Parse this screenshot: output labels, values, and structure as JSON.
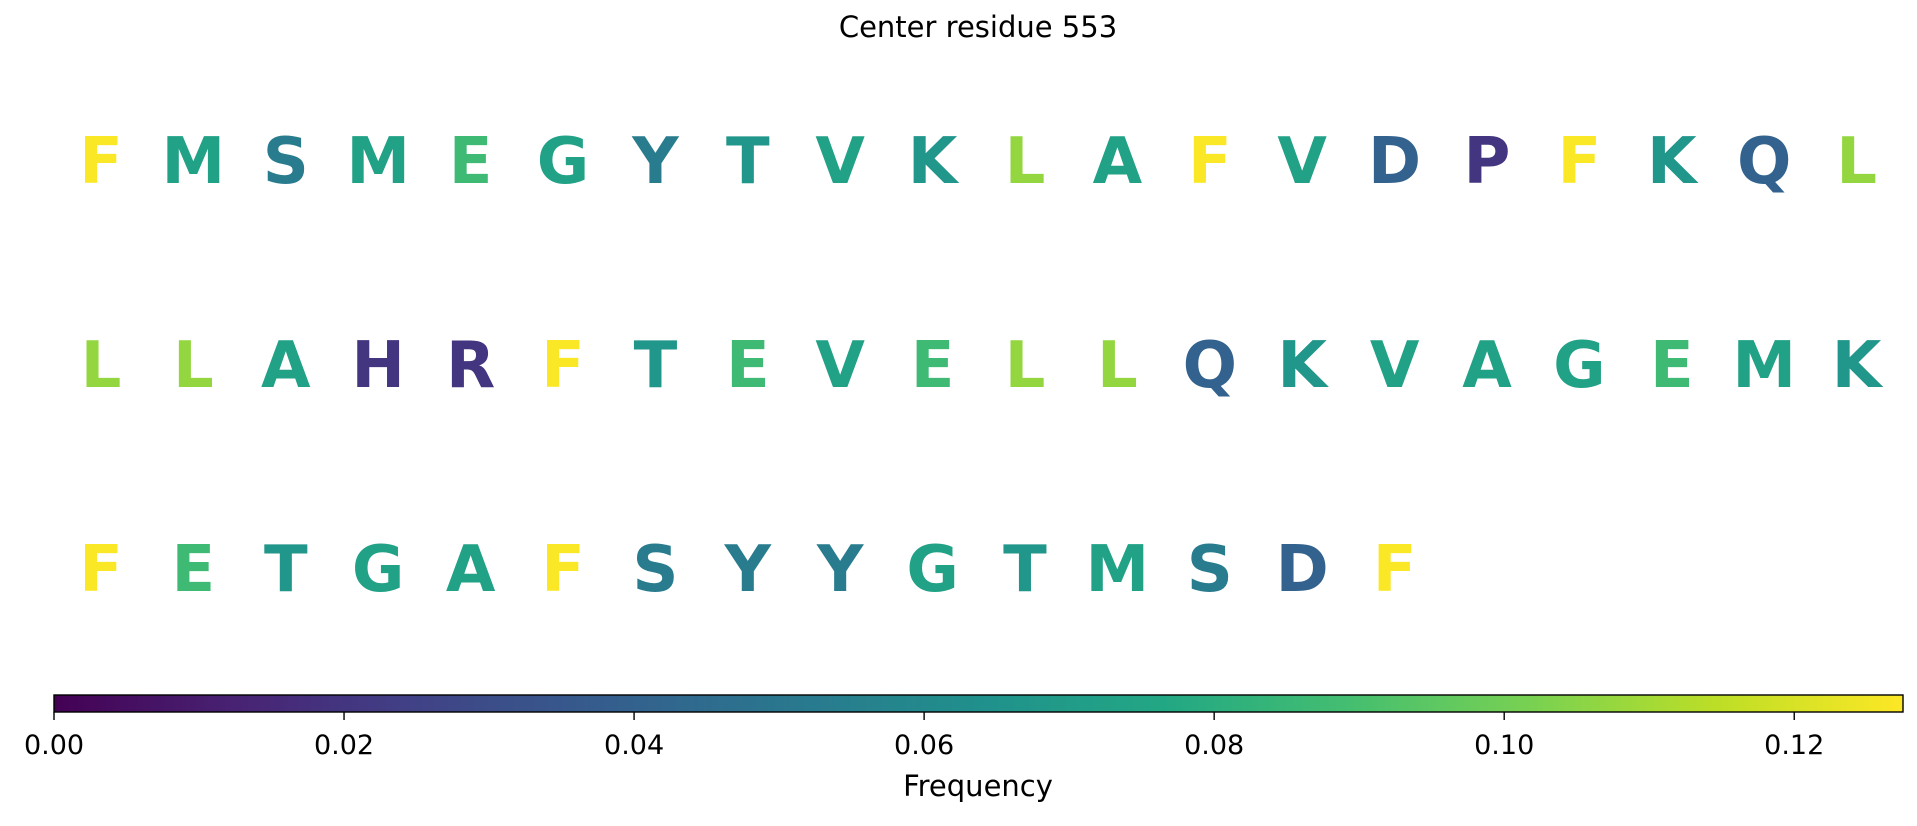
{
  "chart_data": {
    "type": "heatmap",
    "title": "Center residue 553",
    "rows": [
      [
        "F",
        "M",
        "S",
        "M",
        "E",
        "G",
        "Y",
        "T",
        "V",
        "K",
        "L",
        "A",
        "F",
        "V",
        "D",
        "P",
        "F",
        "K",
        "Q",
        "L"
      ],
      [
        "L",
        "L",
        "A",
        "H",
        "R",
        "F",
        "T",
        "E",
        "V",
        "E",
        "L",
        "L",
        "Q",
        "K",
        "V",
        "A",
        "G",
        "E",
        "M",
        "K"
      ],
      [
        "F",
        "E",
        "T",
        "G",
        "A",
        "F",
        "S",
        "Y",
        "Y",
        "G",
        "T",
        "M",
        "S",
        "D",
        "F"
      ]
    ],
    "letter_frequencies": {
      "F": 0.127,
      "L": 0.107,
      "E": 0.087,
      "G": 0.073,
      "A": 0.073,
      "M": 0.073,
      "V": 0.073,
      "K": 0.067,
      "T": 0.067,
      "S": 0.053,
      "Y": 0.053,
      "Q": 0.04,
      "D": 0.04,
      "H": 0.02,
      "P": 0.02,
      "R": 0.02
    },
    "colorbar": {
      "label": "Frequency",
      "colormap": "viridis",
      "range": [
        0,
        0.1275
      ],
      "ticks": [
        0.0,
        0.02,
        0.04,
        0.06,
        0.08,
        0.1,
        0.12
      ],
      "tick_labels": [
        "0.00",
        "0.02",
        "0.04",
        "0.06",
        "0.08",
        "0.10",
        "0.12"
      ]
    }
  }
}
